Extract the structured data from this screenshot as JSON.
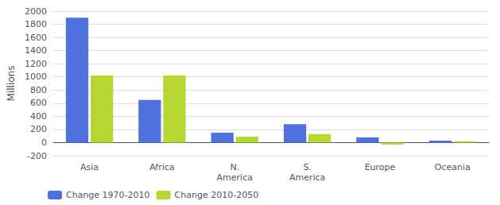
{
  "chart_data": {
    "type": "bar",
    "categories": [
      "Asia",
      "Africa",
      "N.\nAmerica",
      "S.\nAmerica",
      "Europe",
      "Oceania"
    ],
    "series": [
      {
        "name": "Change 1970-2010",
        "values": [
          1900,
          650,
          150,
          280,
          80,
          30
        ]
      },
      {
        "name": "Change 2010-2050",
        "values": [
          1020,
          1020,
          90,
          130,
          -30,
          18
        ]
      }
    ],
    "ylabel": "Millions",
    "ylim": [
      -200,
      2000
    ],
    "yticks": [
      -200,
      0,
      200,
      400,
      600,
      800,
      1000,
      1200,
      1400,
      1600,
      1800,
      2000
    ],
    "grid": true,
    "legend": "lower left"
  }
}
